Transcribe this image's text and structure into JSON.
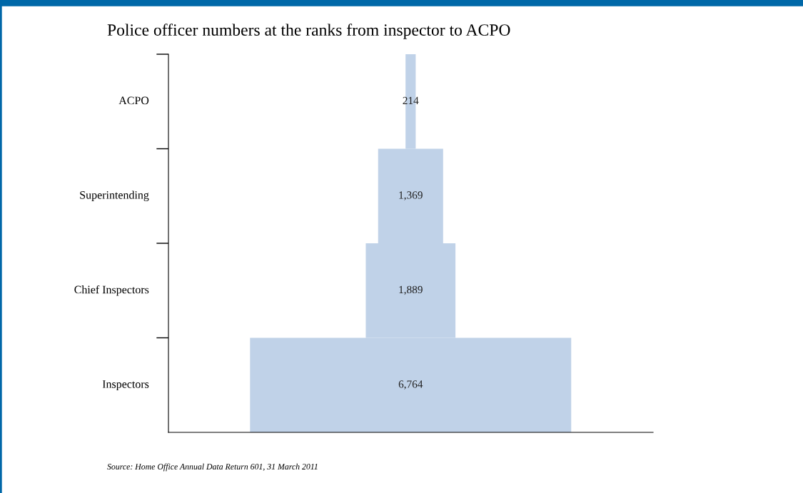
{
  "chart_data": {
    "type": "other",
    "title": "Police officer numbers at the ranks from inspector to ACPO",
    "categories": [
      "ACPO",
      "Superintending",
      "Chief Inspectors",
      "Inspectors"
    ],
    "values": [
      214,
      1369,
      1889,
      6764
    ],
    "color": "#c0d2e8",
    "value_labels": [
      "214",
      "1,369",
      "1,889",
      "6,764"
    ],
    "annotations": [
      "Source: Home Office Annual Data Return 601, 31 March 2011"
    ]
  }
}
